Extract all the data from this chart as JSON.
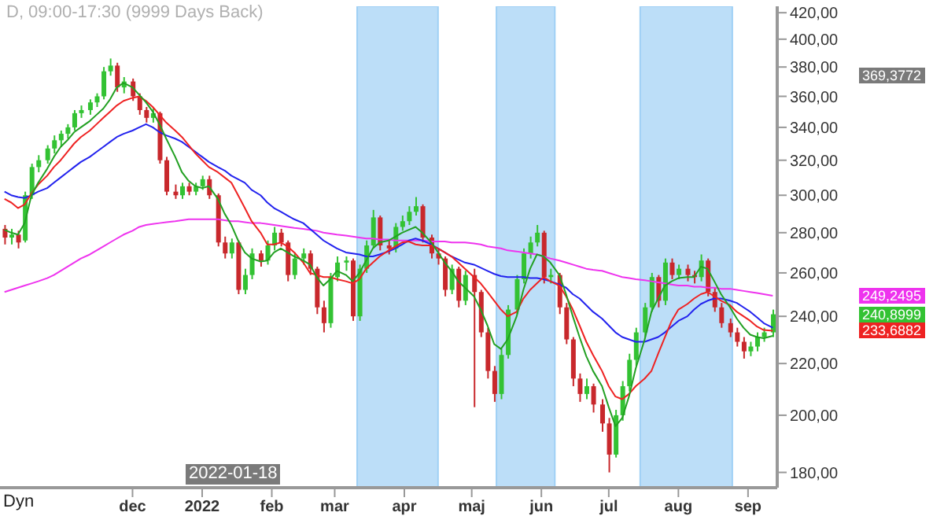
{
  "chart_data": {
    "type": "candlestick",
    "title": "D, 09:00-17:30 (9999 Days Back)",
    "x": [
      "2021-10-05",
      "2021-10-08",
      "2021-10-11",
      "2021-10-14",
      "2021-10-17",
      "2021-10-20",
      "2021-10-24",
      "2021-10-27",
      "2021-10-30",
      "2021-11-02",
      "2021-11-05",
      "2021-11-08",
      "2021-11-12",
      "2021-11-15",
      "2021-11-18",
      "2021-11-21",
      "2021-11-24",
      "2021-11-27",
      "2021-12-01",
      "2021-12-04",
      "2021-12-07",
      "2021-12-10",
      "2021-12-13",
      "2021-12-16",
      "2021-12-20",
      "2021-12-23",
      "2021-12-26",
      "2021-12-29",
      "2022-01-01",
      "2022-01-04",
      "2022-01-08",
      "2022-01-11",
      "2022-01-14",
      "2022-01-17",
      "2022-01-20",
      "2022-01-23",
      "2022-01-27",
      "2022-01-30",
      "2022-02-02",
      "2022-02-05",
      "2022-02-08",
      "2022-02-11",
      "2022-02-15",
      "2022-02-18",
      "2022-02-21",
      "2022-02-24",
      "2022-02-27",
      "2022-03-02",
      "2022-03-06",
      "2022-03-09",
      "2022-03-12",
      "2022-03-15",
      "2022-03-18",
      "2022-03-21",
      "2022-03-25",
      "2022-03-28",
      "2022-03-31",
      "2022-04-03",
      "2022-04-06",
      "2022-04-09",
      "2022-04-13",
      "2022-04-16",
      "2022-04-19",
      "2022-04-22",
      "2022-04-25",
      "2022-04-28",
      "2022-05-02",
      "2022-05-05",
      "2022-05-08",
      "2022-05-11",
      "2022-05-14",
      "2022-05-17",
      "2022-05-21",
      "2022-05-24",
      "2022-05-27",
      "2022-05-30",
      "2022-06-02",
      "2022-06-05",
      "2022-06-09",
      "2022-06-12",
      "2022-06-15",
      "2022-06-18",
      "2022-06-21",
      "2022-06-24",
      "2022-06-28",
      "2022-07-01",
      "2022-07-04",
      "2022-07-07",
      "2022-07-10",
      "2022-07-13",
      "2022-07-17",
      "2022-07-20",
      "2022-07-23",
      "2022-07-26",
      "2022-07-29",
      "2022-08-01",
      "2022-08-05",
      "2022-08-08",
      "2022-08-11",
      "2022-08-14",
      "2022-08-17",
      "2022-08-20",
      "2022-08-24",
      "2022-08-27",
      "2022-08-30",
      "2022-09-02",
      "2022-09-05",
      "2022-09-08",
      "2022-09-12"
    ],
    "ohlc": [
      [
        282,
        284,
        274,
        277.5
      ],
      [
        277.5,
        282,
        274,
        279
      ],
      [
        279,
        281,
        272,
        275
      ],
      [
        276,
        302,
        275,
        300
      ],
      [
        300,
        318,
        298,
        316
      ],
      [
        316,
        323,
        313,
        320
      ],
      [
        320,
        329,
        318,
        327
      ],
      [
        327,
        335,
        324,
        332
      ],
      [
        332,
        338,
        328,
        336
      ],
      [
        336,
        342,
        333,
        340
      ],
      [
        340,
        351,
        338,
        349
      ],
      [
        349,
        354,
        346,
        351
      ],
      [
        351,
        358,
        348,
        356
      ],
      [
        356,
        362,
        353,
        360
      ],
      [
        360,
        380,
        358,
        377
      ],
      [
        377,
        386,
        374,
        381
      ],
      [
        381,
        383,
        363,
        366
      ],
      [
        366,
        373,
        362,
        370
      ],
      [
        370,
        372,
        357,
        360
      ],
      [
        360,
        362,
        348,
        351
      ],
      [
        351,
        353,
        343,
        346
      ],
      [
        346,
        352,
        343,
        349
      ],
      [
        349,
        350,
        318,
        320
      ],
      [
        320,
        322,
        300,
        302
      ],
      [
        302,
        306,
        298,
        300
      ],
      [
        300,
        307,
        298,
        305
      ],
      [
        305,
        307,
        300,
        302
      ],
      [
        302,
        307,
        300,
        305
      ],
      [
        305,
        311,
        303,
        309
      ],
      [
        309,
        311,
        298,
        300
      ],
      [
        300,
        301,
        273,
        275
      ],
      [
        275,
        278,
        267,
        269.5
      ],
      [
        269.5,
        277,
        267,
        275
      ],
      [
        275,
        276,
        250,
        252
      ],
      [
        252,
        262,
        250,
        259
      ],
      [
        259,
        272,
        257,
        269.5
      ],
      [
        269.5,
        271,
        263,
        266
      ],
      [
        266,
        276,
        264,
        273.5
      ],
      [
        273.5,
        283,
        271,
        280
      ],
      [
        280,
        282,
        273,
        275
      ],
      [
        275,
        276,
        256,
        259
      ],
      [
        259,
        270,
        257,
        267
      ],
      [
        267,
        272,
        264,
        269.5
      ],
      [
        269.5,
        271,
        259,
        262
      ],
      [
        262,
        263,
        241,
        244
      ],
      [
        244,
        247,
        233,
        237
      ],
      [
        237,
        260,
        235,
        258
      ],
      [
        258,
        268,
        256,
        265
      ],
      [
        265,
        268,
        261,
        266
      ],
      [
        266,
        267,
        238,
        240
      ],
      [
        240,
        264,
        238,
        262
      ],
      [
        262,
        276,
        260,
        273.5
      ],
      [
        273.5,
        292,
        272,
        288
      ],
      [
        288,
        289,
        271,
        273.5
      ],
      [
        273.5,
        276,
        269,
        272
      ],
      [
        272,
        285,
        270,
        283
      ],
      [
        283,
        289,
        281,
        286
      ],
      [
        286,
        294,
        284,
        291
      ],
      [
        291,
        299,
        289,
        294
      ],
      [
        294,
        295,
        275,
        277.5
      ],
      [
        277.5,
        279,
        267,
        269.5
      ],
      [
        269.5,
        272,
        264,
        267
      ],
      [
        267,
        268,
        249,
        252
      ],
      [
        252,
        264,
        250,
        262
      ],
      [
        262,
        263,
        244,
        247
      ],
      [
        247,
        261,
        245,
        259
      ],
      [
        259,
        262,
        203,
        251
      ],
      [
        251,
        252,
        231,
        233
      ],
      [
        233,
        235,
        214,
        217
      ],
      [
        217,
        219,
        205,
        208
      ],
      [
        208,
        226,
        206,
        223.5
      ],
      [
        223.5,
        245,
        222,
        243
      ],
      [
        243,
        259,
        241,
        257
      ],
      [
        257,
        272,
        255,
        269.5
      ],
      [
        269.5,
        278,
        267,
        275
      ],
      [
        275,
        284,
        273,
        280
      ],
      [
        280,
        281,
        255,
        258
      ],
      [
        258,
        262,
        255,
        259
      ],
      [
        259,
        260,
        241,
        244
      ],
      [
        244,
        246,
        228,
        230
      ],
      [
        230,
        231,
        211,
        214
      ],
      [
        214,
        216,
        205,
        208
      ],
      [
        208,
        214,
        206,
        211
      ],
      [
        211,
        212,
        201,
        204
      ],
      [
        204,
        206,
        194,
        197
      ],
      [
        197,
        199,
        180,
        186
      ],
      [
        186,
        202,
        185,
        200
      ],
      [
        200,
        213,
        198,
        211
      ],
      [
        211,
        224,
        209,
        221.5
      ],
      [
        221.5,
        235,
        219,
        233
      ],
      [
        233,
        246,
        231,
        244
      ],
      [
        244,
        260,
        242,
        258
      ],
      [
        258,
        259,
        244,
        247
      ],
      [
        247,
        267,
        245,
        265
      ],
      [
        265,
        267,
        257,
        259
      ],
      [
        259,
        264,
        257,
        262
      ],
      [
        262,
        264,
        256,
        259
      ],
      [
        259,
        261,
        255,
        258
      ],
      [
        258,
        269,
        256,
        266
      ],
      [
        266,
        267,
        249,
        251
      ],
      [
        251,
        253,
        242,
        244
      ],
      [
        244,
        246,
        235,
        237
      ],
      [
        237,
        239,
        231,
        233
      ],
      [
        233,
        235,
        227,
        229
      ],
      [
        229,
        231,
        222,
        225
      ],
      [
        225,
        229,
        223,
        227
      ],
      [
        227,
        233,
        225,
        231
      ],
      [
        231,
        235,
        229,
        233
      ],
      [
        233,
        243,
        231,
        240.8999
      ]
    ],
    "colors": [
      "#c8282c",
      "#33c233",
      "#c8282c",
      "#33c233",
      "#33c233",
      "#33c233",
      "#33c233",
      "#33c233",
      "#33c233",
      "#33c233",
      "#33c233",
      "#33c233",
      "#33c233",
      "#33c233",
      "#33c233",
      "#33c233",
      "#c8282c",
      "#33c233",
      "#c8282c",
      "#c8282c",
      "#c8282c",
      "#33c233",
      "#c8282c",
      "#c8282c",
      "#c8282c",
      "#33c233",
      "#c8282c",
      "#33c233",
      "#33c233",
      "#c8282c",
      "#c8282c",
      "#c8282c",
      "#33c233",
      "#c8282c",
      "#33c233",
      "#33c233",
      "#c8282c",
      "#33c233",
      "#33c233",
      "#c8282c",
      "#c8282c",
      "#33c233",
      "#33c233",
      "#c8282c",
      "#c8282c",
      "#c8282c",
      "#33c233",
      "#33c233",
      "#33c233",
      "#c8282c",
      "#33c233",
      "#33c233",
      "#33c233",
      "#c8282c",
      "#c8282c",
      "#33c233",
      "#33c233",
      "#33c233",
      "#33c233",
      "#c8282c",
      "#c8282c",
      "#c8282c",
      "#c8282c",
      "#33c233",
      "#c8282c",
      "#33c233",
      "#c8282c",
      "#c8282c",
      "#c8282c",
      "#c8282c",
      "#33c233",
      "#33c233",
      "#33c233",
      "#33c233",
      "#33c233",
      "#33c233",
      "#c8282c",
      "#33c233",
      "#c8282c",
      "#c8282c",
      "#c8282c",
      "#c8282c",
      "#33c233",
      "#c8282c",
      "#c8282c",
      "#c8282c",
      "#33c233",
      "#33c233",
      "#33c233",
      "#33c233",
      "#33c233",
      "#33c233",
      "#c8282c",
      "#33c233",
      "#c8282c",
      "#33c233",
      "#c8282c",
      "#c8282c",
      "#33c233",
      "#c8282c",
      "#c8282c",
      "#c8282c",
      "#c8282c",
      "#c8282c",
      "#c8282c",
      "#33c233",
      "#33c233",
      "#33c233",
      "#33c233"
    ],
    "series": [
      {
        "type": "line",
        "color": "#ee33ee",
        "values": [
          251,
          252,
          253,
          254,
          255,
          256,
          257.5,
          259,
          261,
          263,
          265,
          267,
          269,
          271,
          273,
          275,
          277,
          279,
          281,
          283,
          284,
          284.5,
          285,
          285.5,
          286,
          286.5,
          287,
          287,
          287,
          287,
          287,
          286.5,
          286,
          286,
          285.5,
          285,
          285,
          284.5,
          284,
          283.5,
          283,
          282.5,
          282,
          281.5,
          281,
          280,
          279.5,
          279,
          278.5,
          278,
          277.5,
          277,
          277,
          276.5,
          276.5,
          276,
          276,
          276,
          276,
          276,
          275.5,
          275.5,
          275.5,
          275,
          275,
          275,
          274.5,
          274,
          273,
          272.5,
          272,
          271,
          270.5,
          270,
          269.5,
          269,
          268,
          267,
          266,
          265,
          264,
          263,
          262,
          261.5,
          261,
          260,
          259,
          258,
          257.5,
          257,
          256.5,
          256,
          255.5,
          255,
          254.5,
          254,
          254,
          253.5,
          253.5,
          253,
          253,
          252.5,
          252.5,
          252,
          251.5,
          251,
          250.5,
          250,
          249.2495
        ]
      },
      {
        "type": "line",
        "color": "#2222ee",
        "values": [
          302,
          300,
          299,
          298.5,
          300,
          302,
          304,
          307,
          310,
          313,
          316,
          319,
          322,
          325,
          328,
          331,
          334,
          336,
          338,
          340,
          342,
          340,
          337,
          335,
          333,
          331,
          328,
          325,
          322,
          319,
          316,
          314,
          311,
          309,
          307,
          303,
          300,
          296,
          293,
          291,
          289,
          287,
          285,
          282,
          279,
          276,
          274,
          272,
          270,
          269.5,
          269,
          268,
          268,
          269,
          270.5,
          272,
          274,
          276,
          277,
          276,
          274,
          272,
          270,
          268,
          266.5,
          265,
          264,
          262.5,
          261,
          259.5,
          258.5,
          258,
          258,
          258,
          257.5,
          257.5,
          257,
          256,
          254.5,
          253,
          250,
          248,
          245,
          242,
          239,
          236,
          233,
          231,
          230,
          229,
          229,
          230,
          231,
          233,
          235.5,
          238,
          240,
          243,
          245.5,
          247,
          248,
          248,
          247,
          246,
          244,
          242,
          239.5,
          237,
          235
        ]
      },
      {
        "type": "line",
        "color": "#ee2222",
        "values": [
          298,
          296,
          293,
          295,
          301,
          306,
          311,
          316,
          320,
          325,
          330,
          334,
          338,
          342,
          346,
          350,
          354,
          357,
          359,
          360,
          357,
          353,
          348,
          343,
          338,
          334,
          329,
          324,
          320,
          316,
          313,
          310,
          307,
          300,
          293,
          286,
          280,
          274,
          274,
          275,
          273,
          270,
          265,
          260,
          259,
          258,
          258,
          257,
          256,
          255,
          257,
          262,
          265,
          268,
          271,
          273,
          275,
          275.5,
          274,
          273.5,
          273.5,
          272,
          270,
          268,
          265,
          262,
          258,
          255,
          251,
          247,
          243,
          240,
          242,
          248,
          252,
          255,
          258,
          256,
          254,
          249,
          243,
          236,
          229,
          223.5,
          217,
          211,
          207,
          206,
          208,
          211,
          214,
          217,
          224,
          231,
          238,
          243,
          245.5,
          248,
          250,
          251,
          249,
          247,
          245,
          242,
          240,
          238,
          235.5,
          234,
          233.6882
        ]
      },
      {
        "type": "line",
        "color": "#22a022",
        "values": [
          281.5,
          280,
          279,
          285,
          300,
          307,
          315,
          322,
          328,
          332,
          337,
          340,
          344,
          348,
          352,
          358,
          366,
          369,
          366,
          361,
          356,
          350,
          342,
          333,
          322,
          313,
          308,
          305,
          304,
          305,
          298,
          290,
          284,
          276,
          270,
          267,
          265.5,
          266,
          270,
          272,
          270,
          268,
          266,
          264,
          258,
          254,
          257,
          261,
          259,
          256,
          260,
          266,
          272,
          275,
          276,
          278,
          280,
          281.5,
          283,
          280,
          275,
          270,
          265,
          261,
          256,
          253,
          249,
          243,
          236,
          228,
          226,
          230,
          240,
          252,
          262,
          269,
          268,
          265,
          259,
          250,
          240,
          231,
          223,
          217,
          211,
          203,
          196,
          199,
          207,
          218,
          230,
          242,
          248,
          254,
          256,
          257.5,
          258,
          258,
          263,
          262,
          256,
          250,
          244,
          239,
          235,
          232,
          231,
          230.5,
          231.5
        ]
      }
    ],
    "xlim": [
      "2021-10-03",
      "2022-09-14"
    ],
    "xticks": [
      {
        "value": "2021-12-01",
        "label": "dec"
      },
      {
        "value": "2022-01-01",
        "label": "2022"
      },
      {
        "value": "2022-02-01",
        "label": "feb"
      },
      {
        "value": "2022-03-01",
        "label": "mar"
      },
      {
        "value": "2022-04-01",
        "label": "apr"
      },
      {
        "value": "2022-05-01",
        "label": "maj"
      },
      {
        "value": "2022-06-01",
        "label": "jun"
      },
      {
        "value": "2022-07-01",
        "label": "jul"
      },
      {
        "value": "2022-08-01",
        "label": "aug"
      },
      {
        "value": "2022-09-01",
        "label": "sep"
      }
    ],
    "ylim": [
      175,
      425
    ],
    "yticks": [
      {
        "value": 180,
        "label": "180,00"
      },
      {
        "value": 200,
        "label": "200,00"
      },
      {
        "value": 220,
        "label": "220,00"
      },
      {
        "value": 240,
        "label": "240,00"
      },
      {
        "value": 260,
        "label": "260,00"
      },
      {
        "value": 280,
        "label": "280,00"
      },
      {
        "value": 300,
        "label": "300,00"
      },
      {
        "value": 320,
        "label": "320,00"
      },
      {
        "value": 340,
        "label": "340,00"
      },
      {
        "value": 360,
        "label": "360,00"
      },
      {
        "value": 380,
        "label": "380,00"
      },
      {
        "value": 400,
        "label": "400,00"
      },
      {
        "value": 420,
        "label": "420,00"
      }
    ],
    "log": true,
    "bands": [
      {
        "axis": "x",
        "from": "2022-03-11",
        "to": "2022-04-16",
        "color": "#9fd0f5"
      },
      {
        "axis": "x",
        "from": "2022-05-12",
        "to": "2022-06-07",
        "color": "#9fd0f5"
      },
      {
        "axis": "x",
        "from": "2022-07-15",
        "to": "2022-08-25",
        "color": "#9fd0f5"
      }
    ],
    "annotations": [
      "Dyn",
      "2022-01-18",
      "369,3772",
      "249,2495",
      "240,8999",
      "233,6882"
    ]
  }
}
